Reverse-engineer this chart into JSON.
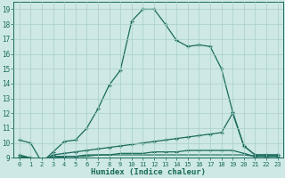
{
  "xlabel": "Humidex (Indice chaleur)",
  "bg_color": "#cde8e5",
  "grid_color": "#a8cfcc",
  "line_color": "#1a6b5a",
  "xmin": 0,
  "xmax": 23,
  "ymin": 9,
  "ymax": 19,
  "line1_x": [
    0,
    1,
    2,
    3,
    4,
    5,
    6,
    7,
    8,
    9,
    10,
    11,
    12,
    13,
    14,
    15,
    16,
    17,
    18,
    19,
    20,
    21,
    22,
    23
  ],
  "line1_y": [
    10.2,
    10.0,
    8.7,
    9.4,
    10.1,
    10.2,
    11.0,
    12.3,
    13.9,
    14.9,
    18.2,
    19.0,
    19.0,
    18.0,
    16.9,
    16.5,
    16.6,
    16.5,
    15.0,
    12.1,
    9.8,
    9.2,
    9.2,
    9.2
  ],
  "line2_x": [
    0,
    1,
    2,
    3,
    4,
    5,
    6,
    7,
    8,
    9,
    10,
    11,
    12,
    13,
    14,
    15,
    16,
    17,
    18,
    19,
    20,
    21,
    22,
    23
  ],
  "line2_y": [
    9.2,
    9.0,
    8.8,
    9.2,
    9.3,
    9.4,
    9.5,
    9.6,
    9.7,
    9.8,
    9.9,
    10.0,
    10.1,
    10.2,
    10.3,
    10.4,
    10.5,
    10.6,
    10.7,
    12.0,
    9.8,
    9.2,
    9.2,
    9.2
  ],
  "line3_x": [
    0,
    1,
    2,
    3,
    4,
    5,
    6,
    7,
    8,
    9,
    10,
    11,
    12,
    13,
    14,
    15,
    16,
    17,
    18,
    19,
    20,
    21,
    22,
    23
  ],
  "line3_y": [
    9.1,
    9.0,
    8.8,
    9.1,
    9.1,
    9.1,
    9.2,
    9.2,
    9.2,
    9.3,
    9.3,
    9.3,
    9.4,
    9.4,
    9.4,
    9.5,
    9.5,
    9.5,
    9.5,
    9.5,
    9.3,
    9.1,
    9.1,
    9.1
  ],
  "line4_x": [
    0,
    2,
    3,
    4,
    5,
    6,
    7,
    8,
    9,
    10,
    19,
    20,
    21,
    22,
    23
  ],
  "line4_y": [
    9.1,
    8.8,
    9.0,
    9.1,
    9.1,
    9.1,
    9.2,
    9.2,
    9.2,
    9.2,
    9.2,
    9.2,
    9.1,
    9.1,
    9.1
  ]
}
